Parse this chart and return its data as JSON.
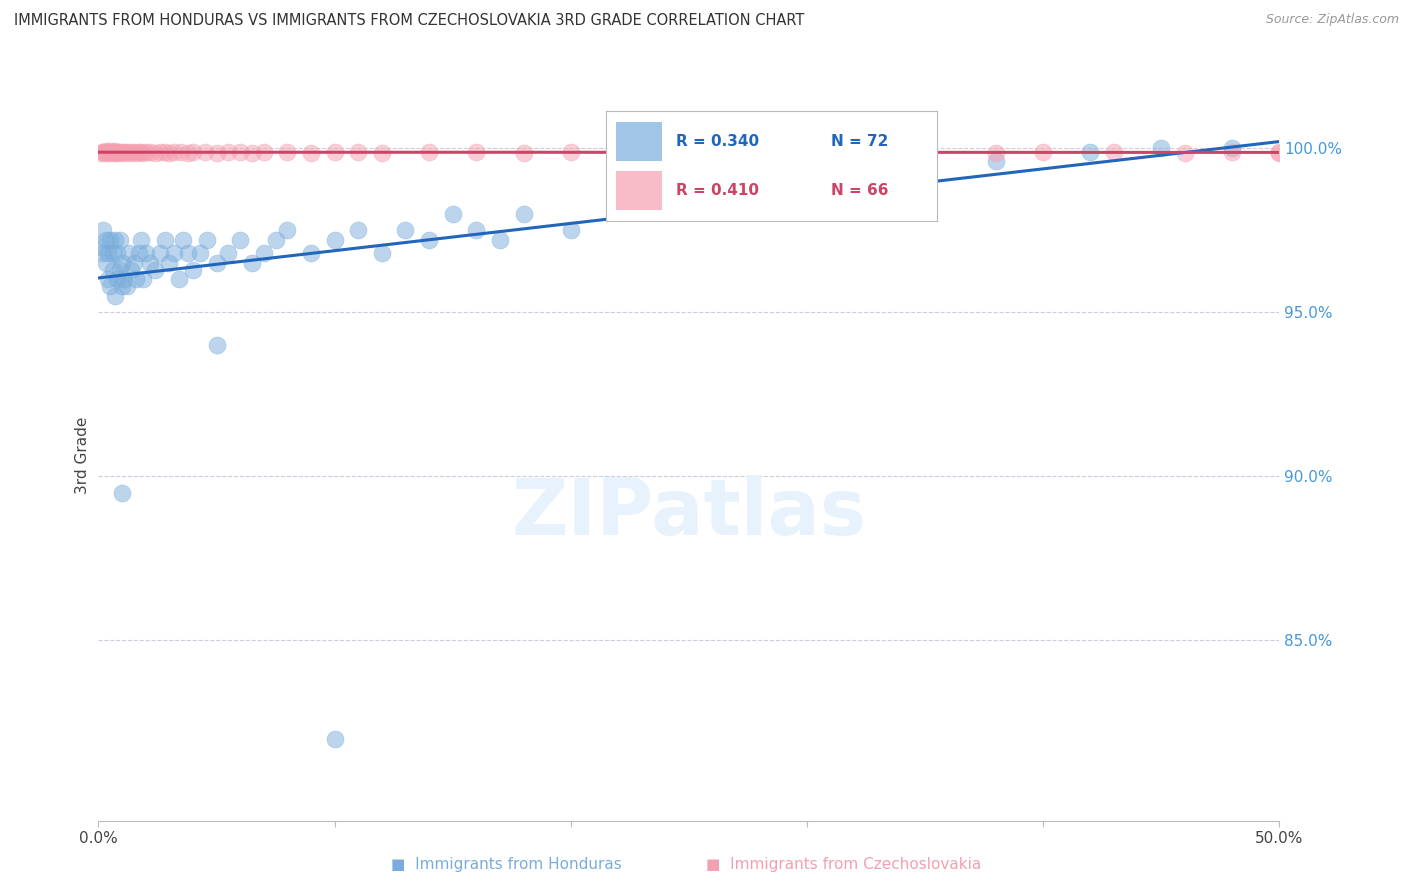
{
  "title": "IMMIGRANTS FROM HONDURAS VS IMMIGRANTS FROM CZECHOSLOVAKIA 3RD GRADE CORRELATION CHART",
  "source": "Source: ZipAtlas.com",
  "ylabel": "3rd Grade",
  "ylabel_right_vals": [
    1.0,
    0.95,
    0.9,
    0.85
  ],
  "xlim": [
    0.0,
    0.5
  ],
  "ylim": [
    0.795,
    1.018
  ],
  "blue_color": "#7AADDC",
  "pink_color": "#F4A0B0",
  "blue_line_color": "#2266BB",
  "pink_line_color": "#CC4466",
  "grid_color": "#CCCCDD",
  "honduras_x": [
    0.001,
    0.002,
    0.002,
    0.003,
    0.003,
    0.004,
    0.004,
    0.005,
    0.005,
    0.006,
    0.006,
    0.007,
    0.007,
    0.008,
    0.008,
    0.009,
    0.009,
    0.01,
    0.01,
    0.011,
    0.012,
    0.013,
    0.014,
    0.015,
    0.016,
    0.017,
    0.018,
    0.019,
    0.02,
    0.022,
    0.024,
    0.026,
    0.028,
    0.03,
    0.032,
    0.034,
    0.036,
    0.038,
    0.04,
    0.043,
    0.046,
    0.05,
    0.055,
    0.06,
    0.065,
    0.07,
    0.075,
    0.08,
    0.09,
    0.1,
    0.11,
    0.12,
    0.13,
    0.14,
    0.15,
    0.16,
    0.17,
    0.18,
    0.2,
    0.22,
    0.24,
    0.26,
    0.28,
    0.3,
    0.32,
    0.35,
    0.38,
    0.42,
    0.45,
    0.48,
    0.01,
    0.05,
    0.1
  ],
  "honduras_y": [
    0.97,
    0.968,
    0.975,
    0.965,
    0.972,
    0.96,
    0.968,
    0.958,
    0.972,
    0.963,
    0.968,
    0.955,
    0.972,
    0.96,
    0.968,
    0.963,
    0.972,
    0.958,
    0.965,
    0.96,
    0.958,
    0.968,
    0.963,
    0.965,
    0.96,
    0.968,
    0.972,
    0.96,
    0.968,
    0.965,
    0.963,
    0.968,
    0.972,
    0.965,
    0.968,
    0.96,
    0.972,
    0.968,
    0.963,
    0.968,
    0.972,
    0.965,
    0.968,
    0.972,
    0.965,
    0.968,
    0.972,
    0.975,
    0.968,
    0.972,
    0.975,
    0.968,
    0.975,
    0.972,
    0.98,
    0.975,
    0.972,
    0.98,
    0.975,
    0.982,
    0.985,
    0.988,
    0.985,
    0.99,
    0.988,
    0.993,
    0.996,
    0.999,
    1.0,
    1.0,
    0.895,
    0.94,
    0.82
  ],
  "czechoslovakia_x": [
    0.001,
    0.002,
    0.002,
    0.003,
    0.003,
    0.004,
    0.004,
    0.005,
    0.005,
    0.006,
    0.006,
    0.007,
    0.007,
    0.008,
    0.008,
    0.009,
    0.01,
    0.01,
    0.011,
    0.012,
    0.013,
    0.014,
    0.015,
    0.016,
    0.017,
    0.018,
    0.019,
    0.02,
    0.022,
    0.024,
    0.026,
    0.028,
    0.03,
    0.032,
    0.035,
    0.038,
    0.04,
    0.045,
    0.05,
    0.055,
    0.06,
    0.065,
    0.07,
    0.08,
    0.09,
    0.1,
    0.11,
    0.12,
    0.14,
    0.16,
    0.18,
    0.2,
    0.22,
    0.24,
    0.26,
    0.28,
    0.3,
    0.32,
    0.35,
    0.38,
    0.4,
    0.43,
    0.46,
    0.48,
    0.5,
    0.5
  ],
  "czechoslovakia_y": [
    0.9985,
    0.999,
    0.9988,
    0.9985,
    0.9992,
    0.9988,
    0.999,
    0.9985,
    0.9992,
    0.9988,
    0.999,
    0.9985,
    0.9992,
    0.9988,
    0.9985,
    0.999,
    0.9988,
    0.9985,
    0.999,
    0.9988,
    0.9985,
    0.999,
    0.9988,
    0.9985,
    0.999,
    0.9988,
    0.9985,
    0.999,
    0.9988,
    0.9985,
    0.999,
    0.9988,
    0.9985,
    0.999,
    0.9988,
    0.9985,
    0.999,
    0.9988,
    0.9985,
    0.999,
    0.9988,
    0.9985,
    0.999,
    0.9988,
    0.9985,
    0.999,
    0.9988,
    0.9985,
    0.999,
    0.9988,
    0.9985,
    0.999,
    0.9988,
    0.9985,
    0.999,
    0.9988,
    0.9985,
    0.999,
    0.9988,
    0.9985,
    0.999,
    0.9988,
    0.9985,
    0.999,
    0.9988,
    0.9985
  ]
}
